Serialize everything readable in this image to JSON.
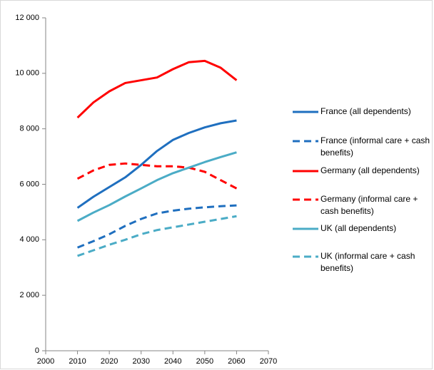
{
  "chart_data": {
    "type": "line",
    "x": [
      2010,
      2015,
      2020,
      2025,
      2030,
      2035,
      2040,
      2045,
      2050,
      2055,
      2060
    ],
    "series": [
      {
        "name": "France (all dependents)",
        "color": "#1f6fbf",
        "dashed": false,
        "values": [
          5150,
          5550,
          5900,
          6250,
          6700,
          7200,
          7600,
          7850,
          8050,
          8200,
          8300
        ]
      },
      {
        "name": "France (informal care + cash benefits)",
        "color": "#1f6fbf",
        "dashed": true,
        "values": [
          3720,
          3950,
          4200,
          4500,
          4750,
          4950,
          5050,
          5120,
          5170,
          5210,
          5240
        ]
      },
      {
        "name": "Germany (all dependents)",
        "color": "#ff0000",
        "dashed": false,
        "values": [
          8400,
          8950,
          9350,
          9650,
          9750,
          9850,
          10150,
          10400,
          10450,
          10200,
          9750
        ]
      },
      {
        "name": "Germany (informal care + cash benefits)",
        "color": "#ff0000",
        "dashed": true,
        "values": [
          6200,
          6500,
          6700,
          6750,
          6700,
          6650,
          6650,
          6600,
          6450,
          6150,
          5850
        ]
      },
      {
        "name": "UK (all dependents)",
        "color": "#4bacc6",
        "dashed": false,
        "values": [
          4680,
          4980,
          5250,
          5560,
          5850,
          6150,
          6400,
          6600,
          6800,
          6980,
          7150
        ]
      },
      {
        "name": "UK (informal care + cash benefits)",
        "color": "#4bacc6",
        "dashed": true,
        "values": [
          3420,
          3620,
          3820,
          4000,
          4200,
          4350,
          4450,
          4550,
          4650,
          4750,
          4850
        ]
      }
    ],
    "xlim": [
      2000,
      2070
    ],
    "xticks": [
      2000,
      2010,
      2020,
      2030,
      2040,
      2050,
      2060,
      2070
    ],
    "ylim": [
      0,
      12000
    ],
    "yticks": [
      0,
      {
        "value": 2000,
        "label": "2 000"
      },
      {
        "value": 4000,
        "label": "4 000"
      },
      {
        "value": 6000,
        "label": "6 000"
      },
      {
        "value": 8000,
        "label": "8 000"
      },
      {
        "value": 10000,
        "label": "10 000"
      },
      {
        "value": 12000,
        "label": "12 000"
      }
    ],
    "grid": false,
    "legend": "right"
  }
}
